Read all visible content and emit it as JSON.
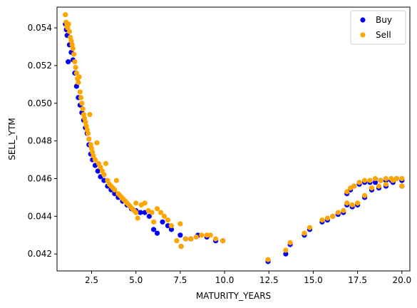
{
  "chart_data": {
    "type": "scatter",
    "xlabel": "MATURITY_YEARS",
    "ylabel": "SELL_YTM",
    "xlim": [
      0.55,
      20.45
    ],
    "ylim": [
      0.0411,
      0.0551
    ],
    "xticks": [
      2.5,
      5.0,
      7.5,
      10.0,
      12.5,
      15.0,
      17.5,
      20.0
    ],
    "xtick_labels": [
      "2.5",
      "5.0",
      "7.5",
      "10.0",
      "12.5",
      "15.0",
      "17.5",
      "20.0"
    ],
    "yticks": [
      0.042,
      0.044,
      0.046,
      0.048,
      0.05,
      0.052,
      0.054
    ],
    "ytick_labels": [
      "0.042",
      "0.044",
      "0.046",
      "0.048",
      "0.050",
      "0.052",
      "0.054"
    ],
    "grid": false,
    "legend": "top-right",
    "series": [
      {
        "name": "Buy",
        "color": "#0000ff",
        "points": [
          [
            1.02,
            0.0542
          ],
          [
            1.08,
            0.0539
          ],
          [
            1.12,
            0.0536
          ],
          [
            1.18,
            0.0522
          ],
          [
            1.25,
            0.0531
          ],
          [
            1.35,
            0.0527
          ],
          [
            1.45,
            0.0523
          ],
          [
            1.55,
            0.0516
          ],
          [
            1.65,
            0.0509
          ],
          [
            1.75,
            0.0503
          ],
          [
            1.85,
            0.0499
          ],
          [
            1.95,
            0.0495
          ],
          [
            2.05,
            0.0491
          ],
          [
            2.15,
            0.0487
          ],
          [
            2.25,
            0.0484
          ],
          [
            2.35,
            0.0478
          ],
          [
            2.45,
            0.0473
          ],
          [
            2.55,
            0.047
          ],
          [
            2.7,
            0.0467
          ],
          [
            2.85,
            0.0464
          ],
          [
            3.0,
            0.0461
          ],
          [
            3.2,
            0.0459
          ],
          [
            3.4,
            0.0456
          ],
          [
            3.6,
            0.0454
          ],
          [
            3.8,
            0.0452
          ],
          [
            4.0,
            0.045
          ],
          [
            4.25,
            0.0448
          ],
          [
            4.5,
            0.0446
          ],
          [
            4.75,
            0.0444
          ],
          [
            5.0,
            0.0443
          ],
          [
            5.25,
            0.0442
          ],
          [
            5.5,
            0.0442
          ],
          [
            5.75,
            0.044
          ],
          [
            6.0,
            0.0433
          ],
          [
            6.2,
            0.0431
          ],
          [
            6.5,
            0.0437
          ],
          [
            6.8,
            0.0435
          ],
          [
            7.0,
            0.0433
          ],
          [
            7.5,
            0.043
          ],
          [
            7.55,
            0.0424
          ],
          [
            7.8,
            0.0428
          ],
          [
            8.1,
            0.0428
          ],
          [
            8.5,
            0.043
          ],
          [
            9.0,
            0.0429
          ],
          [
            9.5,
            0.0427
          ],
          [
            9.9,
            0.0427
          ],
          [
            12.45,
            0.0416
          ],
          [
            13.45,
            0.042
          ],
          [
            13.7,
            0.0425
          ],
          [
            14.5,
            0.043
          ],
          [
            14.8,
            0.0433
          ],
          [
            15.5,
            0.0437
          ],
          [
            15.8,
            0.0438
          ],
          [
            16.1,
            0.044
          ],
          [
            16.4,
            0.0441
          ],
          [
            16.7,
            0.0442
          ],
          [
            16.9,
            0.0452
          ],
          [
            17.1,
            0.0454
          ],
          [
            17.3,
            0.0456
          ],
          [
            17.6,
            0.0457
          ],
          [
            17.9,
            0.0458
          ],
          [
            18.2,
            0.0458
          ],
          [
            18.5,
            0.0458
          ],
          [
            18.8,
            0.0459
          ],
          [
            19.1,
            0.0459
          ],
          [
            19.4,
            0.0459
          ],
          [
            19.7,
            0.046
          ],
          [
            20.0,
            0.0459
          ],
          [
            16.9,
            0.0446
          ],
          [
            17.2,
            0.0445
          ],
          [
            17.5,
            0.0446
          ],
          [
            17.9,
            0.045
          ],
          [
            18.3,
            0.0454
          ],
          [
            18.7,
            0.0455
          ],
          [
            19.1,
            0.0456
          ],
          [
            19.5,
            0.0458
          ],
          [
            20.0,
            0.0456
          ]
        ]
      },
      {
        "name": "Sell",
        "color": "#ffa500",
        "points": [
          [
            1.02,
            0.0547
          ],
          [
            1.06,
            0.0543
          ],
          [
            1.1,
            0.0541
          ],
          [
            1.15,
            0.054
          ],
          [
            1.2,
            0.0542
          ],
          [
            1.25,
            0.0538
          ],
          [
            1.3,
            0.0535
          ],
          [
            1.35,
            0.0533
          ],
          [
            1.4,
            0.0531
          ],
          [
            1.45,
            0.0529
          ],
          [
            1.5,
            0.0526
          ],
          [
            1.55,
            0.0522
          ],
          [
            1.6,
            0.0519
          ],
          [
            1.65,
            0.0516
          ],
          [
            1.7,
            0.0513
          ],
          [
            1.75,
            0.0511
          ],
          [
            1.8,
            0.0514
          ],
          [
            1.85,
            0.0506
          ],
          [
            1.9,
            0.0503
          ],
          [
            1.95,
            0.05
          ],
          [
            2.0,
            0.0497
          ],
          [
            2.05,
            0.0494
          ],
          [
            2.1,
            0.0492
          ],
          [
            2.15,
            0.049
          ],
          [
            2.2,
            0.0488
          ],
          [
            2.25,
            0.0486
          ],
          [
            2.3,
            0.0484
          ],
          [
            2.35,
            0.0481
          ],
          [
            2.4,
            0.0494
          ],
          [
            2.45,
            0.0478
          ],
          [
            2.5,
            0.0476
          ],
          [
            2.55,
            0.0474
          ],
          [
            2.6,
            0.0472
          ],
          [
            2.7,
            0.047
          ],
          [
            2.8,
            0.0479
          ],
          [
            2.9,
            0.0468
          ],
          [
            3.0,
            0.0466
          ],
          [
            3.1,
            0.0464
          ],
          [
            3.2,
            0.0462
          ],
          [
            3.3,
            0.0468
          ],
          [
            3.4,
            0.0459
          ],
          [
            3.5,
            0.0457
          ],
          [
            3.6,
            0.0456
          ],
          [
            3.7,
            0.0455
          ],
          [
            3.8,
            0.0454
          ],
          [
            3.9,
            0.0459
          ],
          [
            4.0,
            0.0452
          ],
          [
            4.1,
            0.0451
          ],
          [
            4.2,
            0.045
          ],
          [
            4.3,
            0.0449
          ],
          [
            4.4,
            0.0448
          ],
          [
            4.5,
            0.0447
          ],
          [
            4.6,
            0.0446
          ],
          [
            4.7,
            0.0445
          ],
          [
            4.8,
            0.0444
          ],
          [
            4.9,
            0.0443
          ],
          [
            5.0,
            0.0442
          ],
          [
            5.0,
            0.0447
          ],
          [
            5.1,
            0.0439
          ],
          [
            5.3,
            0.0446
          ],
          [
            5.5,
            0.0447
          ],
          [
            5.7,
            0.0443
          ],
          [
            5.9,
            0.0442
          ],
          [
            6.0,
            0.0437
          ],
          [
            6.2,
            0.0444
          ],
          [
            6.4,
            0.0442
          ],
          [
            6.6,
            0.044
          ],
          [
            6.8,
            0.0438
          ],
          [
            7.0,
            0.0435
          ],
          [
            7.3,
            0.0427
          ],
          [
            7.5,
            0.0436
          ],
          [
            7.55,
            0.0424
          ],
          [
            7.8,
            0.0428
          ],
          [
            8.1,
            0.0428
          ],
          [
            8.4,
            0.0429
          ],
          [
            8.7,
            0.043
          ],
          [
            9.0,
            0.043
          ],
          [
            9.2,
            0.043
          ],
          [
            9.5,
            0.0428
          ],
          [
            9.9,
            0.0427
          ],
          [
            12.45,
            0.0417
          ],
          [
            13.45,
            0.0422
          ],
          [
            13.7,
            0.0426
          ],
          [
            14.5,
            0.0431
          ],
          [
            14.8,
            0.0434
          ],
          [
            15.5,
            0.0438
          ],
          [
            15.8,
            0.0439
          ],
          [
            16.1,
            0.044
          ],
          [
            16.4,
            0.0442
          ],
          [
            16.7,
            0.0443
          ],
          [
            16.9,
            0.0453
          ],
          [
            17.1,
            0.0455
          ],
          [
            17.3,
            0.0456
          ],
          [
            17.6,
            0.0458
          ],
          [
            17.9,
            0.0459
          ],
          [
            18.2,
            0.0459
          ],
          [
            18.5,
            0.046
          ],
          [
            18.8,
            0.0459
          ],
          [
            19.1,
            0.046
          ],
          [
            19.4,
            0.046
          ],
          [
            19.7,
            0.046
          ],
          [
            20.0,
            0.046
          ],
          [
            16.9,
            0.0447
          ],
          [
            17.2,
            0.0446
          ],
          [
            17.5,
            0.0447
          ],
          [
            17.9,
            0.0451
          ],
          [
            18.3,
            0.0455
          ],
          [
            18.7,
            0.0456
          ],
          [
            19.1,
            0.0457
          ],
          [
            19.5,
            0.0459
          ],
          [
            20.0,
            0.0456
          ]
        ]
      }
    ]
  }
}
